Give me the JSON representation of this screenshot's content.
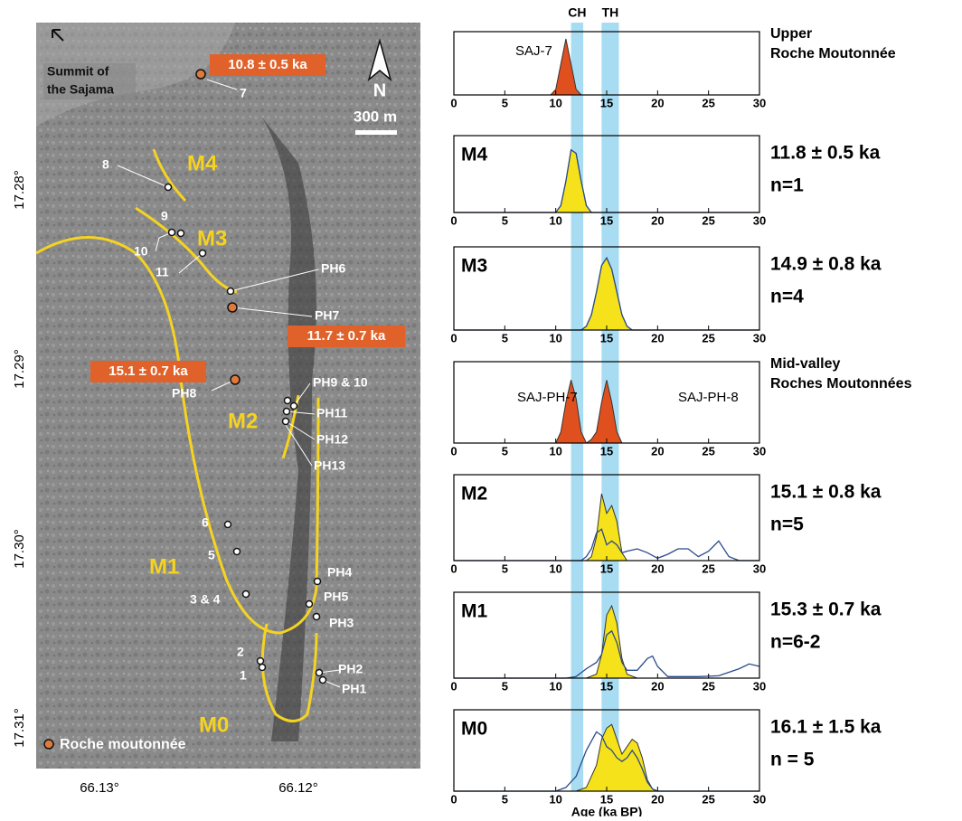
{
  "map": {
    "summit": [
      "Summit of",
      "the Sajama"
    ],
    "north": "N",
    "scale": "300 m",
    "ages": [
      "10.8 ± 0.5 ka",
      "11.7 ± 0.7 ka",
      "15.1 ± 0.7 ka"
    ],
    "zones": [
      "M4",
      "M3",
      "M2",
      "M1",
      "M0"
    ],
    "points": [
      "7",
      "8",
      "9",
      "10",
      "11",
      "PH6",
      "PH7",
      "PH8",
      "PH9 & 10",
      "PH11",
      "PH12",
      "PH13",
      "6",
      "5",
      "3 & 4",
      "PH4",
      "PH5",
      "PH3",
      "2",
      "1",
      "PH2",
      "PH1"
    ],
    "legend": "Roche moutonnée",
    "lat": [
      "17.28°",
      "17.29°",
      "17.30°",
      "17.31°"
    ],
    "lon": [
      "66.13°",
      "66.12°"
    ]
  },
  "chart_data": [
    {
      "type": "density",
      "annotations": [
        "SAJ-7"
      ],
      "side_label": [
        "Upper",
        "Roche Moutonnée"
      ],
      "bands": [
        {
          "label": "CH",
          "range": [
            11.5,
            12.7
          ]
        },
        {
          "label": "TH",
          "range": [
            14.5,
            16.2
          ]
        }
      ],
      "x": [
        0,
        9.5,
        10,
        10.5,
        11,
        11.5,
        12,
        12.5,
        30
      ],
      "series": [
        {
          "color": "#e0501e",
          "fill": true,
          "values": [
            0,
            0,
            0.1,
            0.55,
            1,
            0.55,
            0.1,
            0,
            0
          ]
        }
      ],
      "xlim": [
        0,
        30
      ],
      "xticks": [
        0,
        5,
        10,
        15,
        20,
        25,
        30
      ],
      "ylim": [
        0,
        1
      ]
    },
    {
      "type": "density",
      "title": "M4",
      "side_label": [
        "11.8 ± 0.5 ka",
        "n=1"
      ],
      "x": [
        0,
        10,
        10.5,
        11,
        11.5,
        12,
        12.5,
        13,
        13.5,
        30
      ],
      "series": [
        {
          "color": "#f5e21a",
          "fill": true,
          "values": [
            0,
            0,
            0.1,
            0.45,
            0.9,
            0.85,
            0.45,
            0.1,
            0,
            0
          ]
        },
        {
          "color": "#2a4b8c",
          "fill": false,
          "values": [
            0,
            0,
            0.1,
            0.45,
            0.9,
            0.85,
            0.45,
            0.1,
            0,
            0
          ]
        }
      ],
      "xlim": [
        0,
        30
      ],
      "xticks": [
        0,
        5,
        10,
        15,
        20,
        25,
        30
      ],
      "ylim": [
        0,
        1
      ]
    },
    {
      "type": "density",
      "title": "M3",
      "side_label": [
        "14.9 ± 0.8 ka",
        "n=4"
      ],
      "x": [
        0,
        12.5,
        13,
        13.5,
        14,
        14.5,
        15,
        15.5,
        16,
        16.5,
        17,
        17.5,
        30
      ],
      "series": [
        {
          "color": "#f5e21a",
          "fill": true,
          "values": [
            0,
            0,
            0.05,
            0.2,
            0.5,
            0.85,
            0.95,
            0.8,
            0.5,
            0.2,
            0.05,
            0,
            0
          ]
        },
        {
          "color": "#2a4b8c",
          "fill": false,
          "values": [
            0,
            0,
            0.05,
            0.2,
            0.5,
            0.85,
            0.95,
            0.8,
            0.5,
            0.2,
            0.05,
            0,
            0
          ]
        }
      ],
      "xlim": [
        0,
        30
      ],
      "xticks": [
        0,
        5,
        10,
        15,
        20,
        25,
        30
      ],
      "ylim": [
        0,
        1
      ]
    },
    {
      "type": "density",
      "annotations": [
        "SAJ-PH-7",
        "SAJ-PH-8"
      ],
      "side_label": [
        "Mid-valley",
        "Roches Moutonnées"
      ],
      "x": [
        0,
        10,
        10.5,
        11,
        11.5,
        12,
        12.5,
        13,
        13.5,
        14,
        14.5,
        15,
        15.5,
        16,
        16.5,
        30
      ],
      "series": [
        {
          "color": "#e0501e",
          "fill": true,
          "values": [
            0,
            0,
            0.15,
            0.55,
            0.85,
            0.6,
            0.15,
            0,
            0.05,
            0.15,
            0.55,
            0.85,
            0.55,
            0.15,
            0,
            0
          ]
        }
      ],
      "xlim": [
        0,
        30
      ],
      "xticks": [
        0,
        5,
        10,
        15,
        20,
        25,
        30
      ],
      "ylim": [
        0,
        1
      ]
    },
    {
      "type": "density",
      "title": "M2",
      "side_label": [
        "15.1 ± 0.8 ka",
        "n=5"
      ],
      "x": [
        0,
        12.5,
        13,
        13.5,
        14,
        14.5,
        15,
        15.5,
        16,
        16.5,
        17,
        18,
        19,
        20,
        21,
        22,
        23,
        24,
        25,
        26,
        27,
        28,
        30
      ],
      "series": [
        {
          "color": "#f5e21a",
          "fill": true,
          "values": [
            0,
            0,
            0,
            0.05,
            0.3,
            0.85,
            0.6,
            0.7,
            0.5,
            0.1,
            0,
            0,
            0,
            0,
            0,
            0,
            0,
            0,
            0,
            0,
            0,
            0,
            0
          ]
        },
        {
          "color": "#2a4b8c",
          "fill": false,
          "values": [
            0,
            0,
            0.05,
            0.15,
            0.35,
            0.4,
            0.2,
            0.25,
            0.2,
            0.1,
            0.12,
            0.15,
            0.1,
            0.03,
            0.08,
            0.15,
            0.15,
            0.05,
            0.12,
            0.25,
            0.05,
            0,
            0
          ]
        }
      ],
      "xlim": [
        0,
        30
      ],
      "xticks": [
        0,
        5,
        10,
        15,
        20,
        25,
        30
      ],
      "ylim": [
        0,
        1
      ]
    },
    {
      "type": "density",
      "title": "M1",
      "side_label": [
        "15.3 ± 0.7 ka",
        "n=6-2"
      ],
      "x": [
        0,
        11,
        12,
        13,
        14,
        14.5,
        15,
        15.5,
        16,
        16.5,
        17,
        18,
        19,
        19.5,
        20,
        21,
        22,
        24,
        26,
        28,
        29,
        30
      ],
      "series": [
        {
          "color": "#f5e21a",
          "fill": true,
          "values": [
            0,
            0,
            0,
            0,
            0.05,
            0.3,
            0.8,
            0.92,
            0.7,
            0.25,
            0.05,
            0,
            0,
            0,
            0,
            0,
            0,
            0,
            0,
            0,
            0,
            0
          ]
        },
        {
          "color": "#2a4b8c",
          "fill": false,
          "values": [
            0,
            0,
            0.02,
            0.12,
            0.2,
            0.3,
            0.55,
            0.6,
            0.45,
            0.2,
            0.1,
            0.1,
            0.25,
            0.28,
            0.15,
            0.02,
            0.02,
            0.02,
            0.03,
            0.12,
            0.18,
            0.15
          ]
        }
      ],
      "xlim": [
        0,
        30
      ],
      "xticks": [
        0,
        5,
        10,
        15,
        20,
        25,
        30
      ],
      "ylim": [
        0,
        1
      ]
    },
    {
      "type": "density",
      "title": "M0",
      "side_label": [
        "16.1 ± 1.5 ka",
        "n = 5"
      ],
      "xlabel": "Age (ka BP)",
      "x": [
        0,
        10,
        11,
        12,
        13,
        14,
        14.5,
        15,
        15.5,
        16,
        16.5,
        17,
        17.5,
        18,
        18.5,
        19,
        19.5,
        20,
        21,
        30
      ],
      "series": [
        {
          "color": "#f5e21a",
          "fill": true,
          "values": [
            0,
            0,
            0,
            0,
            0.05,
            0.35,
            0.7,
            0.85,
            0.9,
            0.7,
            0.5,
            0.6,
            0.7,
            0.65,
            0.45,
            0.15,
            0.03,
            0,
            0,
            0
          ]
        },
        {
          "color": "#2a4b8c",
          "fill": false,
          "values": [
            0,
            0,
            0.05,
            0.2,
            0.55,
            0.8,
            0.75,
            0.6,
            0.55,
            0.45,
            0.4,
            0.45,
            0.55,
            0.45,
            0.3,
            0.12,
            0.03,
            0,
            0,
            0
          ]
        }
      ],
      "xlim": [
        0,
        30
      ],
      "xticks": [
        0,
        5,
        10,
        15,
        20,
        25,
        30
      ],
      "ylim": [
        0,
        1
      ]
    }
  ]
}
